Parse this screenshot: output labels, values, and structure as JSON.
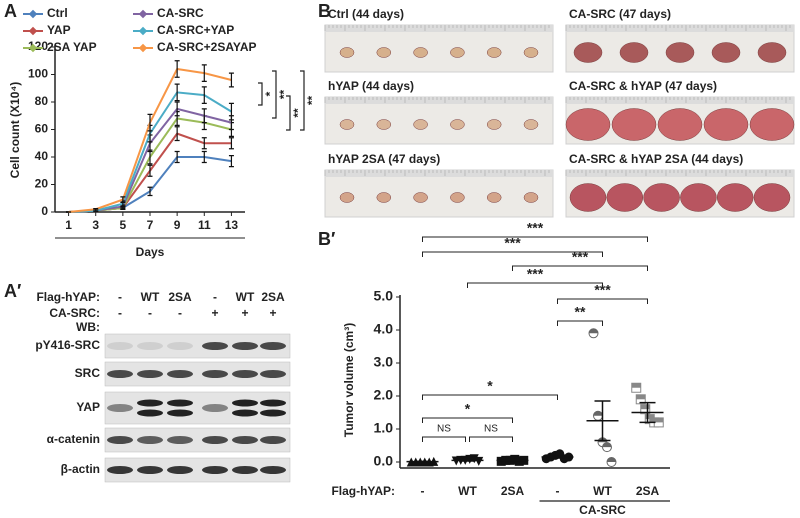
{
  "panel_labels": [
    "A",
    "B",
    "A′",
    "B′"
  ],
  "chart_data": [
    {
      "type": "line",
      "x_label": "Days",
      "y_label": "Cell count (X10⁴)",
      "x": [
        1,
        3,
        5,
        7,
        9,
        11,
        13
      ],
      "xlim": [
        0,
        14
      ],
      "xticks": [
        1,
        3,
        5,
        7,
        9,
        11,
        13
      ],
      "ylim": [
        0,
        120
      ],
      "yticks": [
        0,
        20,
        40,
        60,
        80,
        100,
        120
      ],
      "series": [
        {
          "name": "Ctrl",
          "color": "#4f81bd",
          "values": [
            0,
            1,
            3,
            15,
            40,
            40,
            37
          ],
          "errors": [
            0,
            0.5,
            1,
            3,
            4,
            4,
            4
          ]
        },
        {
          "name": "YAP",
          "color": "#c0504d",
          "values": [
            0,
            1,
            3,
            30,
            57,
            50,
            50
          ],
          "errors": [
            0,
            0.5,
            1,
            4,
            5,
            4,
            4
          ]
        },
        {
          "name": "2SA YAP",
          "color": "#9bbb59",
          "values": [
            0,
            1,
            3,
            40,
            68,
            65,
            60
          ],
          "errors": [
            0,
            0.5,
            1,
            5,
            5,
            5,
            5
          ]
        },
        {
          "name": "CA-SRC",
          "color": "#8064a2",
          "values": [
            0,
            1,
            4,
            50,
            75,
            70,
            65
          ],
          "errors": [
            0,
            0.5,
            1,
            6,
            5,
            5,
            5
          ]
        },
        {
          "name": "CA-SRC+YAP",
          "color": "#4bacc6",
          "values": [
            0,
            1,
            6,
            57,
            87,
            85,
            73
          ],
          "errors": [
            0,
            0.5,
            2,
            6,
            6,
            6,
            6
          ]
        },
        {
          "name": "CA-SRC+2SAYAP",
          "color": "#f79646",
          "values": [
            0,
            2,
            9,
            65,
            104,
            101,
            96
          ],
          "errors": [
            0,
            0.5,
            2,
            6,
            6,
            6,
            5
          ]
        }
      ],
      "annotations": [
        "*",
        "**",
        "**",
        "**"
      ]
    },
    {
      "type": "scatter",
      "y_label": "Tumor volume (cm³)",
      "group_label": "Flag-hYAP:",
      "span_label": "CA-SRC",
      "categories": [
        "-",
        "WT",
        "2SA",
        "-",
        "WT",
        "2SA"
      ],
      "ylim": [
        0,
        5
      ],
      "yticks": [
        {
          "value": 0,
          "label": "0.0"
        },
        {
          "value": 1,
          "label": "1.0"
        },
        {
          "value": 2,
          "label": "2.0"
        },
        {
          "value": 3,
          "label": "3.0"
        },
        {
          "value": 4,
          "label": "4.0"
        },
        {
          "value": 5,
          "label": "5.0"
        }
      ],
      "series": [
        {
          "marker": "triangle",
          "color": "#111111",
          "values": [
            0,
            0,
            0,
            0,
            0,
            0.02
          ],
          "mean": 0.01,
          "sem": 0.01
        },
        {
          "marker": "triangle-down",
          "color": "#111111",
          "values": [
            0.03,
            0.05,
            0.05,
            0.08,
            0.1,
            0.02
          ],
          "mean": 0.05,
          "sem": 0.02
        },
        {
          "marker": "square",
          "color": "#111111",
          "values": [
            0.02,
            0.05,
            0.05,
            0.08,
            0.02,
            0.05
          ],
          "mean": 0.05,
          "sem": 0.02
        },
        {
          "marker": "circle",
          "color": "#111111",
          "values": [
            0.1,
            0.15,
            0.2,
            0.25,
            0.1,
            0.15
          ],
          "mean": 0.15,
          "sem": 0.03
        },
        {
          "marker": "half-circle",
          "color": "#666666",
          "values": [
            3.9,
            1.4,
            0.6,
            0.45,
            0
          ],
          "mean": 1.25,
          "sem": 0.6
        },
        {
          "marker": "half-square",
          "color": "#888888",
          "values": [
            2.25,
            1.9,
            1.6,
            1.3,
            1.2,
            1.2
          ],
          "mean": 1.5,
          "sem": 0.3
        }
      ],
      "annotations": [
        "***",
        "***",
        "***",
        "***",
        "***",
        "**",
        "*",
        "*",
        "NS",
        "NS"
      ]
    }
  ],
  "photos": [
    "Ctrl (44 days)",
    "CA-SRC (47 days)",
    "hYAP (44 days)",
    "CA-SRC & hYAP (47 days)",
    "hYAP 2SA (47 days)",
    "CA-SRC & hYAP 2SA (44 days)"
  ],
  "blot": {
    "conditions": [
      {
        "label": "Flag-hYAP:",
        "lanes": [
          "-",
          "WT",
          "2SA",
          "-",
          "WT",
          "2SA"
        ]
      },
      {
        "label": "CA-SRC:",
        "lanes": [
          "-",
          "-",
          "-",
          "+",
          "+",
          "+"
        ]
      }
    ],
    "wb_label": "WB:",
    "proteins": [
      "pY416-SRC",
      "SRC",
      "YAP",
      "α-catenin",
      "β-actin"
    ]
  }
}
